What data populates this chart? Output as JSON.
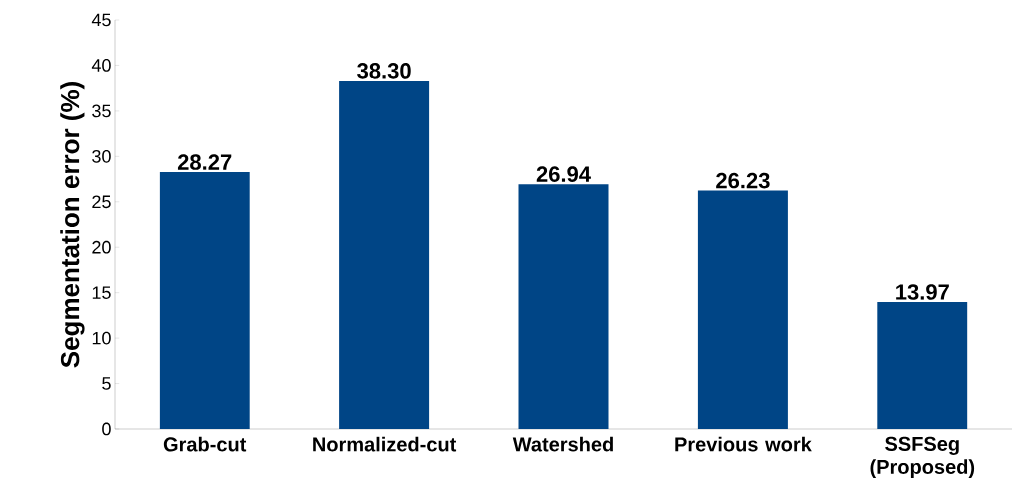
{
  "chart_data": {
    "type": "bar",
    "ylabel": "Segmentation error (%)",
    "categories": [
      "Grab-cut",
      "Normalized-cut",
      "Watershed",
      "Previous work",
      "SSFSeg (Proposed)"
    ],
    "values": [
      28.27,
      38.3,
      26.94,
      26.23,
      13.97
    ],
    "value_labels": [
      "28.27",
      "38.30",
      "26.94",
      "26.23",
      "13.97"
    ],
    "color": "#004586",
    "ylim": [
      0,
      45
    ],
    "yticks": [
      0,
      5,
      10,
      15,
      20,
      25,
      30,
      35,
      40,
      45
    ],
    "grid": false,
    "legend": false
  }
}
